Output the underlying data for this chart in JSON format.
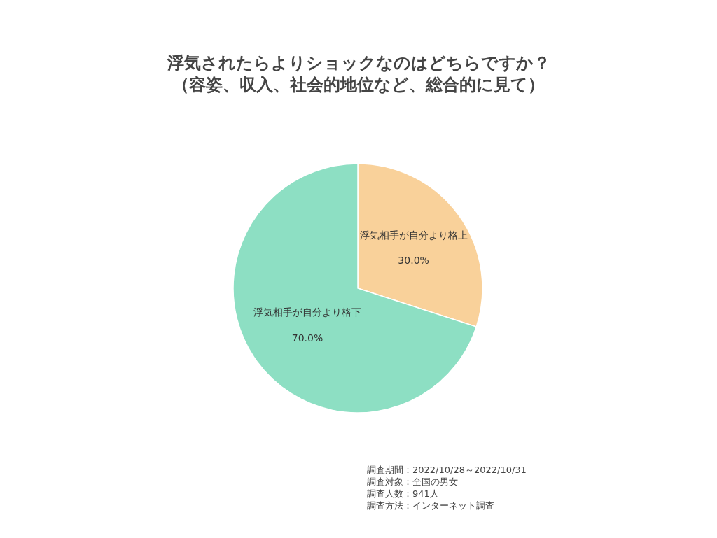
{
  "chart_data": {
    "type": "pie",
    "title": "浮気されたらよりショックなのはどちらですか？",
    "subtitle": "（容姿、収入、社会的地位など、総合的に見て）",
    "categories": [
      "浮気相手が自分より格上",
      "浮気相手が自分より格下"
    ],
    "values": [
      30.0,
      70.0
    ],
    "colors": [
      "#f9d19a",
      "#8ddfc3"
    ],
    "value_labels": [
      "30.0%",
      "70.0%"
    ],
    "legend": false,
    "annotations": [
      "調査期間：2022/10/28～2022/10/31",
      "調査対象：全国の男女",
      "調査人数：941人",
      "調査方法：インターネット調査"
    ]
  }
}
